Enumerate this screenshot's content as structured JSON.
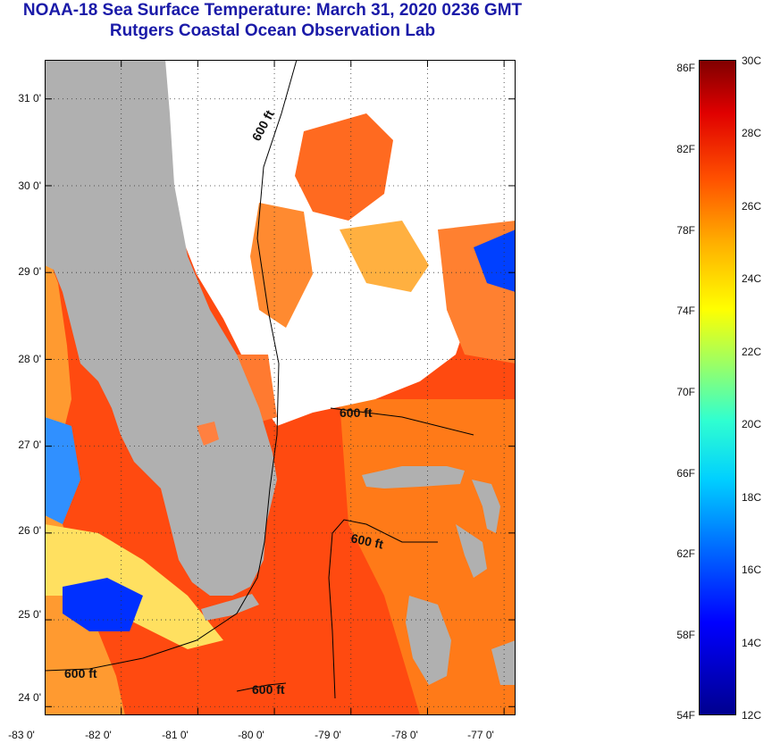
{
  "title": {
    "line1": "NOAA-18 Sea Surface Temperature:  March 31, 2020 0236 GMT",
    "line2": "Rutgers Coastal Ocean Observation Lab"
  },
  "map": {
    "lat_min": 23.9,
    "lat_max": 31.45,
    "lon_min": -83.0,
    "lon_max": -76.85,
    "lat_labels": [
      "31 0'",
      "30 0'",
      "29 0'",
      "28 0'",
      "27 0'",
      "26 0'",
      "25 0'",
      "24 0'"
    ],
    "lat_values": [
      31,
      30,
      29,
      28,
      27,
      26,
      25,
      24
    ],
    "lon_labels": [
      "-83 0'",
      "-82 0'",
      "-81 0'",
      "-80 0'",
      "-79 0'",
      "-78 0'",
      "-77 0'"
    ],
    "lon_values": [
      -83,
      -82,
      -81,
      -80,
      -79,
      -78,
      -77
    ],
    "contour_labels": [
      "600 ft",
      "600 ft",
      "600 ft",
      "600 ft",
      "600 ft"
    ],
    "colors": {
      "land": "#b0b0b0",
      "cloud": "#ffffff",
      "warm_water": "#ff4a10",
      "cool_water": "#ffa020",
      "cold_water": "#0030ff"
    }
  },
  "colorbar": {
    "fahrenheit_labels": [
      "86F",
      "82F",
      "78F",
      "74F",
      "70F",
      "66F",
      "62F",
      "58F",
      "54F"
    ],
    "celsius_labels": [
      "30C",
      "28C",
      "26C",
      "24C",
      "22C",
      "20C",
      "18C",
      "16C",
      "14C",
      "12C"
    ],
    "min_c": 12,
    "max_c": 30
  }
}
